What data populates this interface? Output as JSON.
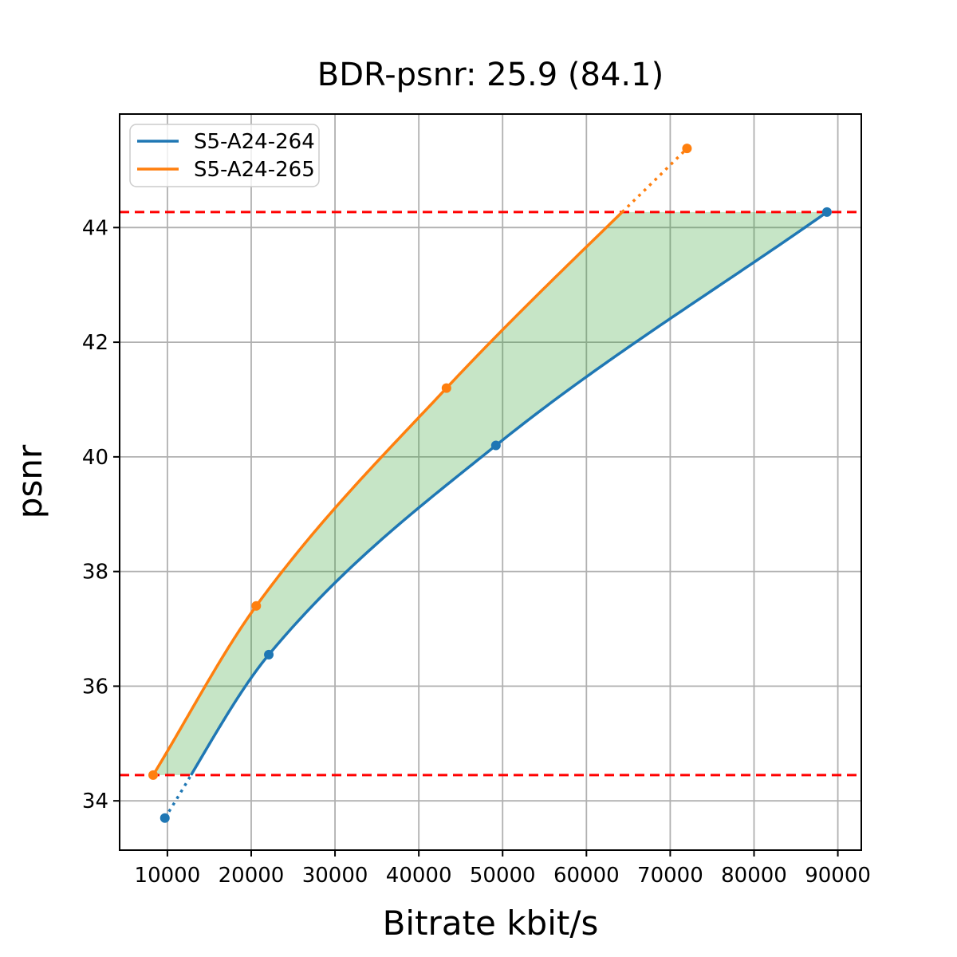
{
  "chart_data": {
    "type": "line",
    "title": "BDR-psnr: 25.9 (84.1)",
    "xlabel": "Bitrate kbit/s",
    "ylabel": "psnr",
    "xlim": [
      4300,
      92800
    ],
    "ylim": [
      33.14,
      45.98
    ],
    "xticks": [
      10000,
      20000,
      30000,
      40000,
      50000,
      60000,
      70000,
      80000,
      90000
    ],
    "yticks": [
      34,
      36,
      38,
      40,
      42,
      44
    ],
    "grid": true,
    "grid_color": "#b0b0b0",
    "legend_position": "upper-left",
    "series": [
      {
        "name": "S5-A24-264",
        "color": "#1f77b4",
        "points": [
          [
            9700,
            33.7
          ],
          [
            22100,
            36.55
          ],
          [
            49200,
            40.2
          ],
          [
            88700,
            44.27
          ]
        ]
      },
      {
        "name": "S5-A24-265",
        "color": "#ff7f0e",
        "points": [
          [
            8300,
            34.45
          ],
          [
            20600,
            37.4
          ],
          [
            43300,
            41.2
          ],
          [
            72000,
            45.38
          ]
        ]
      }
    ],
    "overlap_band": {
      "lower_psnr": 34.45,
      "upper_psnr": 44.27,
      "line_color": "#ff0000",
      "line_style": "dashed",
      "fill_color": "#2ca02c",
      "fill_opacity": 0.27
    }
  }
}
